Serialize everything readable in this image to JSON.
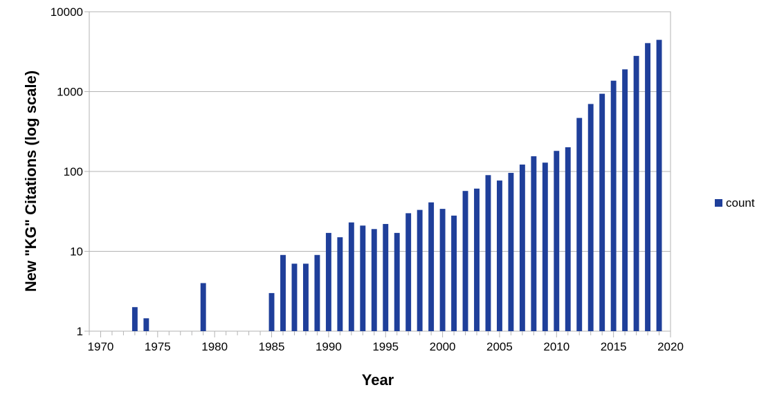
{
  "chart_data": {
    "type": "bar",
    "title": "",
    "xlabel": "Year",
    "ylabel": "New \"KG\" Citations (log scale)",
    "y_scale": "log",
    "ylim": [
      1,
      10000
    ],
    "xlim": [
      1969,
      2020
    ],
    "x_tick_labels": [
      "1970",
      "1975",
      "1980",
      "1985",
      "1990",
      "1995",
      "2000",
      "2005",
      "2010",
      "2015",
      "2020"
    ],
    "y_tick_labels": [
      "1",
      "10",
      "100",
      "1000",
      "10000"
    ],
    "grid": "horizontal",
    "legend_position": "right",
    "series": [
      {
        "name": "count",
        "color": "#1f3f9a",
        "points": [
          {
            "x": 1973,
            "y": 2
          },
          {
            "x": 1974,
            "y": 1.45
          },
          {
            "x": 1979,
            "y": 4
          },
          {
            "x": 1985,
            "y": 3
          },
          {
            "x": 1986,
            "y": 9
          },
          {
            "x": 1987,
            "y": 7
          },
          {
            "x": 1988,
            "y": 7
          },
          {
            "x": 1989,
            "y": 9
          },
          {
            "x": 1990,
            "y": 17
          },
          {
            "x": 1991,
            "y": 15
          },
          {
            "x": 1992,
            "y": 23
          },
          {
            "x": 1993,
            "y": 21
          },
          {
            "x": 1994,
            "y": 19
          },
          {
            "x": 1995,
            "y": 22
          },
          {
            "x": 1996,
            "y": 17
          },
          {
            "x": 1997,
            "y": 30
          },
          {
            "x": 1998,
            "y": 33
          },
          {
            "x": 1999,
            "y": 41
          },
          {
            "x": 2000,
            "y": 34
          },
          {
            "x": 2001,
            "y": 28
          },
          {
            "x": 2002,
            "y": 57
          },
          {
            "x": 2003,
            "y": 61
          },
          {
            "x": 2004,
            "y": 90
          },
          {
            "x": 2005,
            "y": 77
          },
          {
            "x": 2006,
            "y": 96
          },
          {
            "x": 2007,
            "y": 122
          },
          {
            "x": 2008,
            "y": 155
          },
          {
            "x": 2009,
            "y": 129
          },
          {
            "x": 2010,
            "y": 181
          },
          {
            "x": 2011,
            "y": 201
          },
          {
            "x": 2012,
            "y": 468
          },
          {
            "x": 2013,
            "y": 700
          },
          {
            "x": 2014,
            "y": 940
          },
          {
            "x": 2015,
            "y": 1370
          },
          {
            "x": 2016,
            "y": 1900
          },
          {
            "x": 2017,
            "y": 2800
          },
          {
            "x": 2018,
            "y": 4050
          },
          {
            "x": 2019,
            "y": 4450
          }
        ]
      }
    ]
  }
}
